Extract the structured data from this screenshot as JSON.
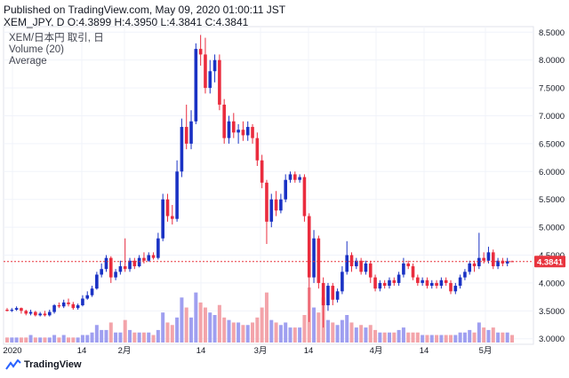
{
  "header": {
    "published": "Published on TradingView.com, May 09, 2020 01:00:11 JST",
    "ohlc": "XEM_JPY, D O:4.3899 H:4.3950 L:4.3841 C:4.3841"
  },
  "legend": {
    "symbol": "XEM/日本円 取引, 日",
    "volume": "Volume (20)",
    "average": "Average"
  },
  "footer": {
    "brand": "TradingView"
  },
  "colors": {
    "up": "#1a32c4",
    "down": "#ea2c3e",
    "vol_up": "#9f9ff0",
    "vol_down": "#f3a4aa",
    "price_line": "#e8353f",
    "label_bg": "#e8353f"
  },
  "chart_data": {
    "type": "candlestick",
    "title": "XEM/日本円 取引, 日",
    "ylim": [
      2.9,
      8.6
    ],
    "y_ticks": [
      "8.5000",
      "8.0000",
      "7.5000",
      "7.0000",
      "6.5000",
      "6.0000",
      "5.5000",
      "5.0000",
      "4.5000",
      "4.0000",
      "3.5000",
      "3.0000"
    ],
    "x_ticks": [
      "2020",
      "14",
      "2月",
      "14",
      "3月",
      "14",
      "4月",
      "14",
      "5月"
    ],
    "last_price": "4.3841",
    "candles": [
      [
        3.52,
        3.5,
        3.55,
        3.49
      ],
      [
        3.5,
        3.52,
        3.55,
        3.48
      ],
      [
        3.52,
        3.55,
        3.58,
        3.5
      ],
      [
        3.55,
        3.5,
        3.56,
        3.45
      ],
      [
        3.5,
        3.45,
        3.52,
        3.42
      ],
      [
        3.45,
        3.48,
        3.52,
        3.42
      ],
      [
        3.48,
        3.42,
        3.5,
        3.4
      ],
      [
        3.42,
        3.45,
        3.48,
        3.4
      ],
      [
        3.45,
        3.42,
        3.5,
        3.4
      ],
      [
        3.42,
        3.48,
        3.52,
        3.4
      ],
      [
        3.48,
        3.6,
        3.62,
        3.45
      ],
      [
        3.6,
        3.58,
        3.65,
        3.55
      ],
      [
        3.58,
        3.65,
        3.7,
        3.55
      ],
      [
        3.65,
        3.62,
        3.72,
        3.58
      ],
      [
        3.62,
        3.55,
        3.66,
        3.52
      ],
      [
        3.55,
        3.6,
        3.63,
        3.52
      ],
      [
        3.6,
        3.72,
        3.78,
        3.58
      ],
      [
        3.72,
        3.78,
        3.85,
        3.7
      ],
      [
        3.78,
        3.9,
        3.95,
        3.75
      ],
      [
        3.9,
        4.15,
        4.2,
        3.88
      ],
      [
        4.15,
        4.25,
        4.35,
        4.1
      ],
      [
        4.25,
        4.45,
        4.5,
        4.2
      ],
      [
        4.45,
        4.1,
        4.48,
        4.0
      ],
      [
        4.1,
        4.2,
        4.25,
        4.05
      ],
      [
        4.2,
        4.3,
        4.4,
        4.15
      ],
      [
        4.3,
        4.25,
        4.8,
        4.2
      ],
      [
        4.25,
        4.4,
        4.45,
        4.2
      ],
      [
        4.4,
        4.3,
        4.45,
        4.25
      ],
      [
        4.3,
        4.45,
        4.5,
        4.28
      ],
      [
        4.45,
        4.4,
        4.55,
        4.35
      ],
      [
        4.4,
        4.5,
        4.55,
        4.38
      ],
      [
        4.5,
        4.45,
        4.55,
        4.42
      ],
      [
        4.45,
        4.8,
        4.9,
        4.42
      ],
      [
        4.8,
        5.5,
        5.6,
        4.75
      ],
      [
        5.5,
        5.2,
        5.6,
        5.1
      ],
      [
        5.2,
        5.15,
        5.4,
        5.05
      ],
      [
        5.15,
        6.0,
        6.2,
        5.1
      ],
      [
        6.0,
        6.8,
        6.95,
        5.9
      ],
      [
        6.8,
        6.5,
        7.2,
        6.4
      ],
      [
        6.5,
        6.9,
        7.1,
        6.4
      ],
      [
        6.9,
        8.2,
        8.3,
        6.85
      ],
      [
        8.2,
        8.1,
        8.45,
        7.9
      ],
      [
        8.1,
        7.5,
        8.4,
        7.4
      ],
      [
        7.5,
        7.8,
        8.0,
        7.4
      ],
      [
        7.8,
        8.0,
        8.1,
        7.6
      ],
      [
        8.0,
        7.2,
        8.1,
        7.1
      ],
      [
        7.2,
        6.6,
        7.3,
        6.5
      ],
      [
        6.6,
        6.9,
        7.0,
        6.5
      ],
      [
        6.9,
        6.7,
        7.05,
        6.6
      ],
      [
        6.7,
        6.75,
        6.85,
        6.5
      ],
      [
        6.75,
        6.65,
        6.9,
        6.55
      ],
      [
        6.65,
        6.8,
        6.9,
        6.55
      ],
      [
        6.8,
        6.6,
        6.85,
        6.5
      ],
      [
        6.6,
        6.2,
        6.7,
        6.1
      ],
      [
        6.2,
        5.8,
        6.3,
        5.7
      ],
      [
        5.8,
        5.1,
        5.85,
        4.7
      ],
      [
        5.1,
        5.5,
        5.6,
        5.0
      ],
      [
        5.5,
        5.3,
        5.65,
        5.2
      ],
      [
        5.3,
        5.5,
        5.6,
        5.25
      ],
      [
        5.5,
        5.85,
        5.95,
        5.45
      ],
      [
        5.85,
        5.95,
        6.0,
        5.8
      ],
      [
        5.95,
        5.85,
        6.0,
        5.8
      ],
      [
        5.85,
        5.9,
        5.95,
        5.8
      ],
      [
        5.9,
        5.2,
        5.95,
        5.1
      ],
      [
        5.2,
        4.1,
        5.25,
        3.3
      ],
      [
        4.1,
        4.8,
        4.95,
        4.0
      ],
      [
        4.8,
        4.0,
        4.85,
        3.9
      ],
      [
        4.0,
        3.6,
        4.1,
        3.2
      ],
      [
        3.6,
        3.95,
        4.0,
        3.5
      ],
      [
        3.95,
        3.7,
        4.0,
        3.6
      ],
      [
        3.7,
        3.85,
        3.9,
        3.65
      ],
      [
        3.85,
        4.2,
        4.3,
        3.8
      ],
      [
        4.2,
        4.5,
        4.75,
        4.15
      ],
      [
        4.5,
        4.3,
        4.55,
        4.2
      ],
      [
        4.3,
        4.4,
        4.45,
        4.25
      ],
      [
        4.4,
        4.2,
        4.45,
        4.15
      ],
      [
        4.2,
        4.35,
        4.4,
        4.15
      ],
      [
        4.35,
        4.1,
        4.4,
        4.0
      ],
      [
        4.1,
        3.9,
        4.15,
        3.85
      ],
      [
        3.9,
        4.0,
        4.05,
        3.85
      ],
      [
        4.0,
        3.95,
        4.05,
        3.9
      ],
      [
        3.95,
        4.05,
        4.1,
        3.9
      ],
      [
        4.05,
        4.0,
        4.1,
        3.95
      ],
      [
        4.0,
        4.15,
        4.2,
        3.95
      ],
      [
        4.15,
        4.35,
        4.45,
        4.1
      ],
      [
        4.35,
        4.3,
        4.4,
        4.25
      ],
      [
        4.3,
        4.1,
        4.35,
        4.05
      ],
      [
        4.1,
        4.0,
        4.15,
        3.95
      ],
      [
        4.0,
        4.05,
        4.1,
        3.95
      ],
      [
        4.05,
        3.95,
        4.1,
        3.9
      ],
      [
        3.95,
        4.0,
        4.05,
        3.9
      ],
      [
        4.0,
        3.95,
        4.05,
        3.9
      ],
      [
        3.95,
        4.05,
        4.1,
        3.9
      ],
      [
        4.05,
        4.0,
        4.1,
        3.95
      ],
      [
        4.0,
        3.85,
        4.05,
        3.8
      ],
      [
        3.85,
        3.95,
        4.0,
        3.8
      ],
      [
        3.95,
        4.1,
        4.15,
        3.9
      ],
      [
        4.1,
        4.2,
        4.25,
        4.05
      ],
      [
        4.2,
        4.35,
        4.4,
        4.15
      ],
      [
        4.35,
        4.3,
        4.4,
        4.2
      ],
      [
        4.3,
        4.45,
        4.9,
        4.25
      ],
      [
        4.45,
        4.4,
        4.55,
        4.35
      ],
      [
        4.4,
        4.55,
        4.65,
        4.35
      ],
      [
        4.55,
        4.3,
        4.6,
        4.25
      ],
      [
        4.3,
        4.4,
        4.45,
        4.25
      ],
      [
        4.4,
        4.35,
        4.45,
        4.3
      ],
      [
        4.35,
        4.39,
        4.45,
        4.3
      ],
      [
        4.39,
        4.38,
        4.4,
        4.38
      ]
    ],
    "volumes": [
      2,
      2,
      2,
      2,
      2,
      3,
      2,
      2,
      2,
      2,
      3,
      2,
      3,
      2,
      2,
      2,
      3,
      3,
      4,
      7,
      5,
      5,
      8,
      4,
      4,
      9,
      5,
      4,
      4,
      4,
      4,
      3,
      5,
      12,
      8,
      7,
      10,
      18,
      14,
      10,
      20,
      16,
      14,
      12,
      11,
      15,
      10,
      9,
      8,
      8,
      7,
      7,
      8,
      10,
      14,
      20,
      9,
      8,
      7,
      8,
      6,
      6,
      6,
      11,
      22,
      14,
      12,
      18,
      9,
      8,
      7,
      9,
      11,
      8,
      6,
      7,
      6,
      7,
      5,
      4,
      4,
      4,
      4,
      5,
      6,
      4,
      4,
      4,
      3,
      3,
      3,
      3,
      3,
      3,
      3,
      3,
      4,
      4,
      5,
      4,
      8,
      6,
      5,
      6,
      4,
      4,
      4,
      3
    ]
  }
}
